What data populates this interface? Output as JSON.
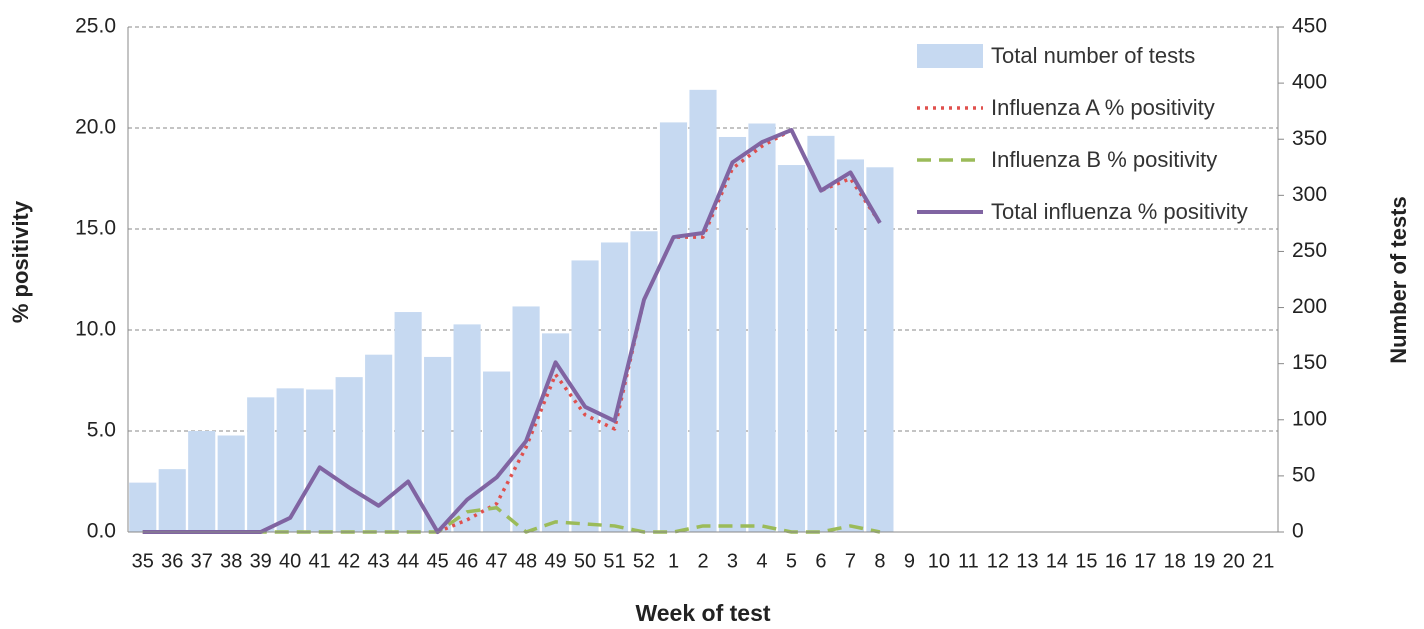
{
  "chart_data": {
    "type": "bar",
    "xlabel": "Week of test",
    "ylabel": "% positivity",
    "y2label": "Number of tests",
    "categories": [
      "35",
      "36",
      "37",
      "38",
      "39",
      "40",
      "41",
      "42",
      "43",
      "44",
      "45",
      "46",
      "47",
      "48",
      "49",
      "50",
      "51",
      "52",
      "1",
      "2",
      "3",
      "4",
      "5",
      "6",
      "7",
      "8",
      "9",
      "10",
      "11",
      "12",
      "13",
      "14",
      "15",
      "16",
      "17",
      "18",
      "19",
      "20",
      "21"
    ],
    "series": [
      {
        "name": "Total number of tests",
        "type": "bar",
        "axis": "y2",
        "color": "#c6d9f1",
        "values": [
          44,
          56,
          90,
          86,
          120,
          128,
          127,
          138,
          158,
          196,
          156,
          185,
          143,
          201,
          177,
          242,
          258,
          268,
          365,
          394,
          352,
          364,
          327,
          353,
          332,
          325,
          null,
          null,
          null,
          null,
          null,
          null,
          null,
          null,
          null,
          null,
          null,
          null,
          null
        ]
      },
      {
        "name": "Influenza A % positivity",
        "type": "line",
        "line_style": "dotted",
        "color": "#e0504d",
        "values": [
          0,
          0,
          0,
          0,
          0,
          0.7,
          3.2,
          2.2,
          1.3,
          2.5,
          0,
          0.6,
          1.4,
          4.2,
          7.8,
          5.8,
          5.1,
          11.5,
          14.6,
          14.6,
          18.0,
          19.1,
          19.9,
          16.9,
          17.5,
          15.3,
          null,
          null,
          null,
          null,
          null,
          null,
          null,
          null,
          null,
          null,
          null,
          null,
          null
        ]
      },
      {
        "name": "Influenza B % positivity",
        "type": "line",
        "line_style": "dashed",
        "color": "#9bbb59",
        "values": [
          0,
          0,
          0,
          0,
          0,
          0,
          0,
          0,
          0,
          0,
          0,
          1.0,
          1.2,
          0,
          0.5,
          0.4,
          0.3,
          0,
          0,
          0.3,
          0.3,
          0.3,
          0,
          0,
          0.3,
          0,
          null,
          null,
          null,
          null,
          null,
          null,
          null,
          null,
          null,
          null,
          null,
          null,
          null
        ]
      },
      {
        "name": "Total influenza % positivity",
        "type": "line",
        "line_style": "solid",
        "color": "#8064a2",
        "values": [
          0,
          0,
          0,
          0,
          0,
          0.7,
          3.2,
          2.2,
          1.3,
          2.5,
          0,
          1.6,
          2.7,
          4.5,
          8.4,
          6.2,
          5.5,
          11.5,
          14.6,
          14.8,
          18.3,
          19.3,
          19.9,
          16.9,
          17.8,
          15.3,
          null,
          null,
          null,
          null,
          null,
          null,
          null,
          null,
          null,
          null,
          null,
          null,
          null
        ]
      }
    ],
    "ylim": [
      0,
      25
    ],
    "yticks": [
      {
        "value": 0,
        "label": "0.0"
      },
      {
        "value": 5,
        "label": "5.0"
      },
      {
        "value": 10,
        "label": "10.0"
      },
      {
        "value": 15,
        "label": "15.0"
      },
      {
        "value": 20,
        "label": "20.0"
      },
      {
        "value": 25,
        "label": "25.0"
      }
    ],
    "y2lim": [
      0,
      450
    ],
    "y2ticks": [
      0,
      50,
      100,
      150,
      200,
      250,
      300,
      350,
      400,
      450
    ],
    "grid": true,
    "legend": "upper right"
  }
}
